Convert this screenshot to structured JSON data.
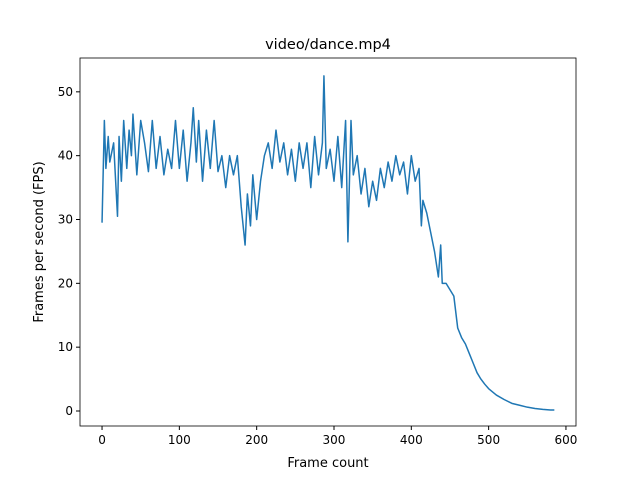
{
  "chart_data": {
    "type": "line",
    "title": "video/dance.mp4",
    "x_label": "Frame count",
    "y_label": "Frames per second (FPS)",
    "x": [
      0,
      3,
      5,
      8,
      10,
      15,
      20,
      22,
      25,
      28,
      32,
      35,
      38,
      40,
      45,
      50,
      55,
      60,
      65,
      70,
      75,
      80,
      85,
      90,
      95,
      100,
      105,
      110,
      115,
      118,
      122,
      125,
      130,
      135,
      140,
      145,
      150,
      155,
      160,
      165,
      170,
      175,
      180,
      185,
      188,
      192,
      195,
      200,
      205,
      210,
      215,
      220,
      225,
      230,
      235,
      240,
      245,
      250,
      255,
      260,
      265,
      270,
      275,
      280,
      285,
      287,
      290,
      295,
      300,
      305,
      310,
      315,
      318,
      322,
      325,
      330,
      335,
      340,
      345,
      350,
      355,
      360,
      365,
      370,
      375,
      380,
      385,
      390,
      395,
      400,
      405,
      410,
      413,
      415,
      420,
      425,
      430,
      435,
      438,
      440,
      445,
      450,
      455,
      460,
      465,
      470,
      475,
      480,
      485,
      490,
      495,
      500,
      510,
      520,
      530,
      540,
      550,
      560,
      570,
      580,
      585
    ],
    "series": [
      {
        "name": "FPS",
        "color": "#1f77b4",
        "values": [
          29.5,
          45.5,
          38,
          43,
          39,
          42,
          30.5,
          43,
          36,
          45.5,
          38,
          44,
          40,
          46.5,
          37,
          45.5,
          42,
          37.5,
          45.5,
          38,
          43,
          37,
          41,
          38,
          45.5,
          38,
          44,
          36,
          42,
          47.5,
          39,
          45.5,
          36,
          44,
          38,
          45.5,
          37.5,
          40,
          35,
          40,
          37,
          40,
          32,
          26,
          34,
          29,
          37,
          30,
          36,
          40,
          42,
          38,
          44,
          39,
          42,
          37,
          41,
          36,
          42,
          38,
          42,
          35,
          43,
          37,
          42,
          52.5,
          38,
          41,
          36,
          43,
          35,
          45.5,
          26.5,
          45.5,
          37,
          40,
          34,
          38,
          32,
          36,
          33,
          38,
          35,
          39,
          36,
          40,
          37,
          39,
          34,
          40,
          36,
          38,
          29,
          33,
          31,
          28,
          25,
          21,
          26,
          20,
          20,
          19,
          18,
          13,
          11.5,
          10.5,
          9,
          7.5,
          6,
          5,
          4.2,
          3.5,
          2.5,
          1.8,
          1.2,
          0.9,
          0.6,
          0.4,
          0.25,
          0.15,
          0.15
        ]
      }
    ],
    "xlim": [
      -28.5,
      613
    ],
    "ylim": [
      -2.35,
      55.3
    ],
    "xticks": [
      0,
      100,
      200,
      300,
      400,
      500,
      600
    ],
    "yticks": [
      0,
      10,
      20,
      30,
      40,
      50
    ]
  }
}
